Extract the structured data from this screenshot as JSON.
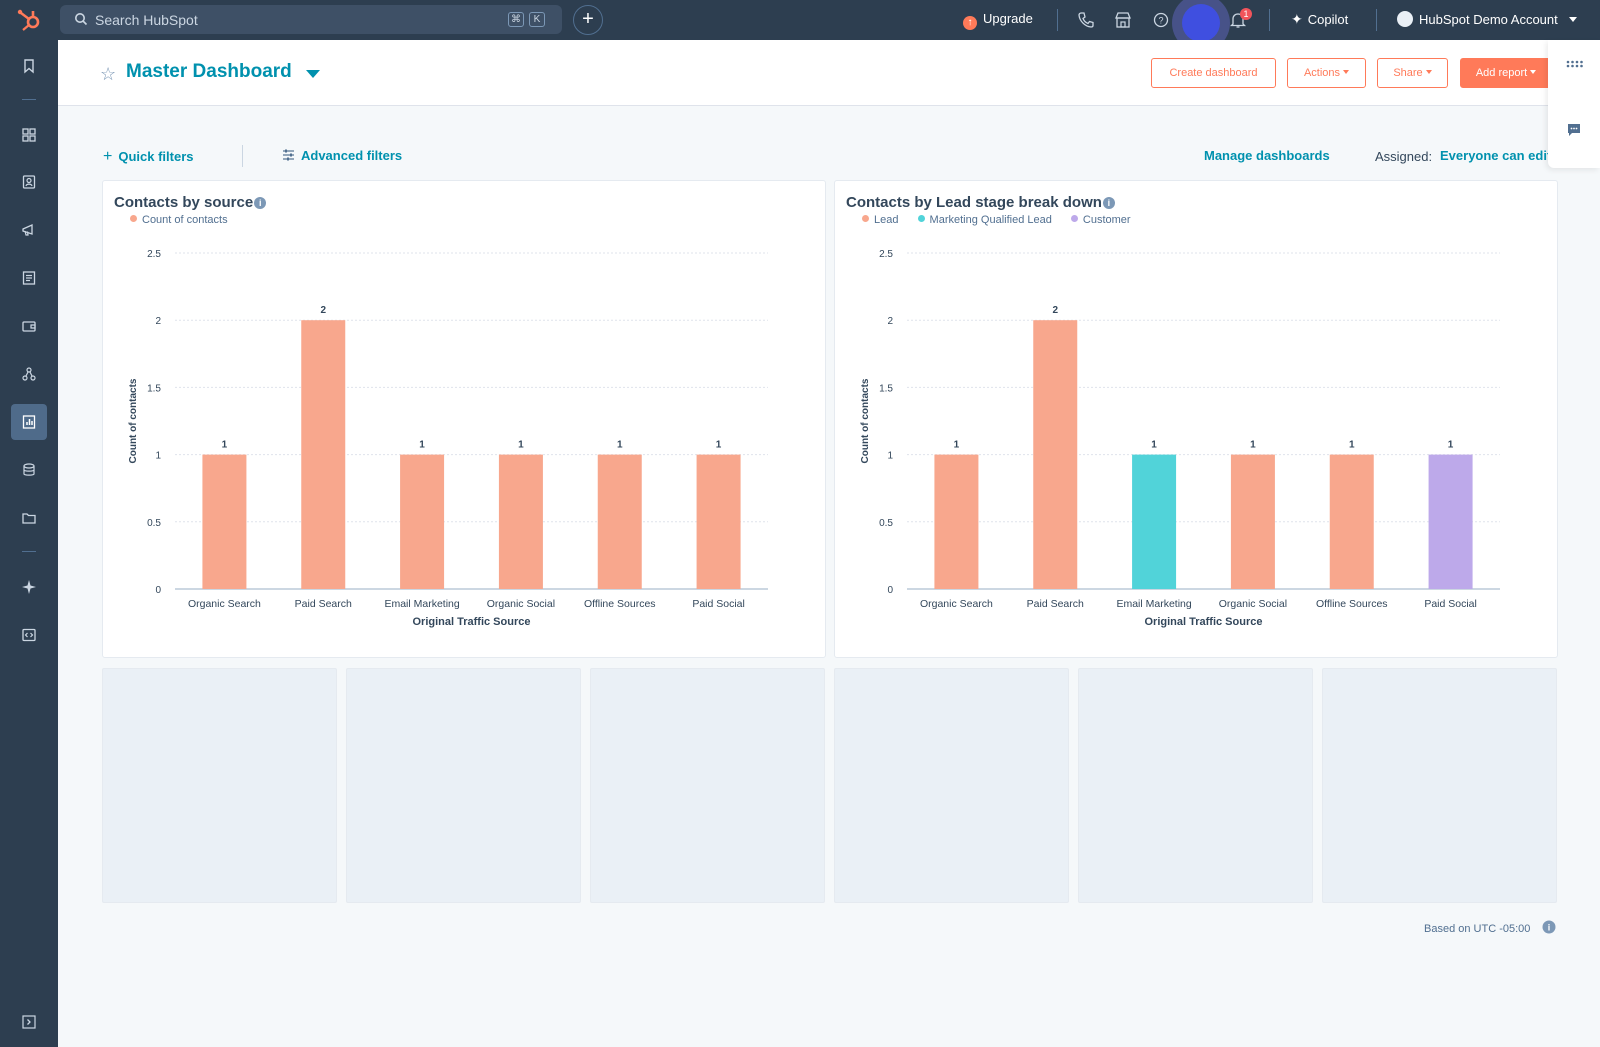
{
  "topbar": {
    "search_placeholder": "Search HubSpot",
    "shortcut_keys": [
      "⌘",
      "K"
    ],
    "upgrade_label": "Upgrade",
    "notification_count": "1",
    "copilot_label": "Copilot",
    "account_label": "HubSpot Demo Account"
  },
  "sidebar": {
    "icons": [
      "bookmark-icon",
      "workspaces-icon",
      "contacts-icon",
      "marketing-icon",
      "content-icon",
      "commerce-icon",
      "automation-icon",
      "reporting-icon",
      "data-management-icon",
      "library-icon",
      "breeze-icon",
      "development-icon",
      "expand-sidebar-icon"
    ],
    "active": "reporting-icon"
  },
  "header": {
    "title": "Master Dashboard",
    "buttons": {
      "create": "Create dashboard",
      "actions": "Actions",
      "share": "Share",
      "add_report": "Add report"
    }
  },
  "filters": {
    "quick": "Quick filters",
    "advanced": "Advanced filters",
    "manage": "Manage dashboards",
    "assigned_label": "Assigned:",
    "assigned_value": "Everyone can edit"
  },
  "colors": {
    "lead": "#f8a78d",
    "mql": "#51d3d9",
    "customer": "#bda9ea",
    "accent": "#0091ae",
    "orange": "#ff7a59"
  },
  "chart_data": [
    {
      "type": "bar",
      "title": "Contacts by source",
      "legend": [
        {
          "name": "Count of contacts",
          "color": "#f8a78d"
        }
      ],
      "categories": [
        "Organic Search",
        "Paid Search",
        "Email Marketing",
        "Organic Social",
        "Offline Sources",
        "Paid Social"
      ],
      "series": [
        {
          "name": "Count of contacts",
          "values": [
            1,
            2,
            1,
            1,
            1,
            1
          ]
        }
      ],
      "bar_colors": [
        "#f8a78d",
        "#f8a78d",
        "#f8a78d",
        "#f8a78d",
        "#f8a78d",
        "#f8a78d"
      ],
      "xlabel": "Original Traffic Source",
      "ylabel": "Count of contacts",
      "yticks": [
        "0",
        "0.5",
        "1",
        "1.5",
        "2",
        "2.5"
      ],
      "ylim": [
        0,
        2.5
      ],
      "grid": true
    },
    {
      "type": "bar",
      "title": "Contacts by Lead stage break down",
      "legend": [
        {
          "name": "Lead",
          "color": "#f8a78d"
        },
        {
          "name": "Marketing Qualified Lead",
          "color": "#51d3d9"
        },
        {
          "name": "Customer",
          "color": "#bda9ea"
        }
      ],
      "categories": [
        "Organic Search",
        "Paid Search",
        "Email Marketing",
        "Organic Social",
        "Offline Sources",
        "Paid Social"
      ],
      "series": [
        {
          "name": "",
          "values": [
            1,
            2,
            1,
            1,
            1,
            1
          ]
        }
      ],
      "bar_colors": [
        "#f8a78d",
        "#f8a78d",
        "#51d3d9",
        "#f8a78d",
        "#f8a78d",
        "#bda9ea"
      ],
      "xlabel": "Original Traffic Source",
      "ylabel": "Count of contacts",
      "yticks": [
        "0",
        "0.5",
        "1",
        "1.5",
        "2",
        "2.5"
      ],
      "ylim": [
        0,
        2.5
      ],
      "grid": true
    }
  ],
  "footer": {
    "timezone_note": "Based on UTC -05:00"
  }
}
